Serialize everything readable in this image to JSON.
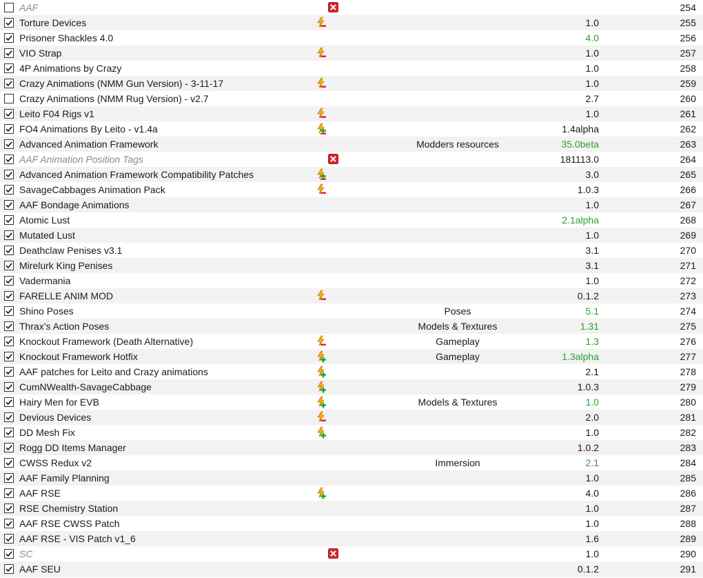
{
  "colors": {
    "row_alt": "#f2f2f2",
    "version_newer": "#2e9e2e",
    "separator_text": "#8a8a8a",
    "separator_icon": "#d9262b"
  },
  "mods": [
    {
      "name": "AAF",
      "checked": false,
      "separator": true,
      "flag": "separator-icon",
      "category": "",
      "version": "",
      "version_status": "",
      "priority": "254"
    },
    {
      "name": "Torture Devices",
      "checked": true,
      "separator": false,
      "flag": "conflict-overwritten-icon",
      "category": "",
      "version": "1.0",
      "version_status": "",
      "priority": "255"
    },
    {
      "name": "Prisoner Shackles 4.0",
      "checked": true,
      "separator": false,
      "flag": "",
      "category": "",
      "version": "4.0",
      "version_status": "newer",
      "priority": "256"
    },
    {
      "name": "VIO Strap",
      "checked": true,
      "separator": false,
      "flag": "conflict-overwritten-icon",
      "category": "",
      "version": "1.0",
      "version_status": "",
      "priority": "257"
    },
    {
      "name": "4P Animations by Crazy",
      "checked": true,
      "separator": false,
      "flag": "",
      "category": "",
      "version": "1.0",
      "version_status": "",
      "priority": "258"
    },
    {
      "name": "Crazy Animations (NMM Gun Version) - 3-11-17",
      "checked": true,
      "separator": false,
      "flag": "conflict-overwritten-icon",
      "category": "",
      "version": "1.0",
      "version_status": "",
      "priority": "259"
    },
    {
      "name": "Crazy Animations (NMM Rug Version) - v2.7",
      "checked": false,
      "separator": false,
      "flag": "",
      "category": "",
      "version": "2.7",
      "version_status": "",
      "priority": "260"
    },
    {
      "name": "Leito F04 Rigs v1",
      "checked": true,
      "separator": false,
      "flag": "conflict-overwritten-icon",
      "category": "",
      "version": "1.0",
      "version_status": "",
      "priority": "261"
    },
    {
      "name": "FO4 Animations By Leito - v1.4a",
      "checked": true,
      "separator": false,
      "flag": "conflict-mixed-icon",
      "category": "",
      "version": "1.4alpha",
      "version_status": "",
      "priority": "262"
    },
    {
      "name": "Advanced Animation Framework",
      "checked": true,
      "separator": false,
      "flag": "",
      "category": "Modders resources",
      "version": "35.0beta",
      "version_status": "newer",
      "priority": "263"
    },
    {
      "name": "AAF Animation Position Tags",
      "checked": true,
      "separator": true,
      "flag": "separator-icon",
      "category": "",
      "version": "181113.0",
      "version_status": "",
      "priority": "264"
    },
    {
      "name": "Advanced Animation Framework Compatibility Patches",
      "checked": true,
      "separator": false,
      "flag": "conflict-mixed-icon",
      "category": "",
      "version": "3.0",
      "version_status": "",
      "priority": "265"
    },
    {
      "name": "SavageCabbages Animation Pack",
      "checked": true,
      "separator": false,
      "flag": "conflict-overwritten-icon",
      "category": "",
      "version": "1.0.3",
      "version_status": "",
      "priority": "266"
    },
    {
      "name": "AAF Bondage Animations",
      "checked": true,
      "separator": false,
      "flag": "",
      "category": "",
      "version": "1.0",
      "version_status": "",
      "priority": "267"
    },
    {
      "name": "Atomic Lust",
      "checked": true,
      "separator": false,
      "flag": "",
      "category": "",
      "version": "2.1alpha",
      "version_status": "newer",
      "priority": "268"
    },
    {
      "name": "Mutated Lust",
      "checked": true,
      "separator": false,
      "flag": "",
      "category": "",
      "version": "1.0",
      "version_status": "",
      "priority": "269"
    },
    {
      "name": "Deathclaw Penises v3.1",
      "checked": true,
      "separator": false,
      "flag": "",
      "category": "",
      "version": "3.1",
      "version_status": "",
      "priority": "270"
    },
    {
      "name": "Mirelurk King Penises",
      "checked": true,
      "separator": false,
      "flag": "",
      "category": "",
      "version": "3.1",
      "version_status": "",
      "priority": "271"
    },
    {
      "name": "Vadermania",
      "checked": true,
      "separator": false,
      "flag": "",
      "category": "",
      "version": "1.0",
      "version_status": "",
      "priority": "272"
    },
    {
      "name": "FARELLE ANIM MOD",
      "checked": true,
      "separator": false,
      "flag": "conflict-overwritten-icon",
      "category": "",
      "version": "0.1.2",
      "version_status": "",
      "priority": "273"
    },
    {
      "name": "Shino Poses",
      "checked": true,
      "separator": false,
      "flag": "",
      "category": "Poses",
      "version": "5.1",
      "version_status": "newer",
      "priority": "274"
    },
    {
      "name": "Thrax's Action Poses",
      "checked": true,
      "separator": false,
      "flag": "",
      "category": "Models & Textures",
      "version": "1.31",
      "version_status": "newer",
      "priority": "275"
    },
    {
      "name": "Knockout Framework (Death Alternative)",
      "checked": true,
      "separator": false,
      "flag": "conflict-overwritten-icon",
      "category": "Gameplay",
      "version": "1.3",
      "version_status": "newer",
      "priority": "276"
    },
    {
      "name": "Knockout Framework Hotfix",
      "checked": true,
      "separator": false,
      "flag": "conflict-overwrite-icon",
      "category": "Gameplay",
      "version": "1.3alpha",
      "version_status": "newer",
      "priority": "277"
    },
    {
      "name": "AAF patches for Leito and Crazy animations",
      "checked": true,
      "separator": false,
      "flag": "conflict-overwrite-icon",
      "category": "",
      "version": "2.1",
      "version_status": "",
      "priority": "278"
    },
    {
      "name": "CumNWealth-SavageCabbage",
      "checked": true,
      "separator": false,
      "flag": "conflict-overwrite-icon",
      "category": "",
      "version": "1.0.3",
      "version_status": "",
      "priority": "279"
    },
    {
      "name": "Hairy Men for EVB",
      "checked": true,
      "separator": false,
      "flag": "conflict-overwrite-icon",
      "category": "Models & Textures",
      "version": "1.0",
      "version_status": "newer",
      "priority": "280"
    },
    {
      "name": "Devious Devices",
      "checked": true,
      "separator": false,
      "flag": "conflict-overwritten-icon",
      "category": "",
      "version": "2.0",
      "version_status": "",
      "priority": "281"
    },
    {
      "name": "DD Mesh Fix",
      "checked": true,
      "separator": false,
      "flag": "conflict-overwrite-icon",
      "category": "",
      "version": "1.0",
      "version_status": "",
      "priority": "282"
    },
    {
      "name": "Rogg DD Items Manager",
      "checked": true,
      "separator": false,
      "flag": "",
      "category": "",
      "version": "1.0.2",
      "version_status": "",
      "priority": "283"
    },
    {
      "name": "CWSS Redux v2",
      "checked": true,
      "separator": false,
      "flag": "",
      "category": "Immersion",
      "version": "2.1",
      "version_status": "newer",
      "priority": "284"
    },
    {
      "name": "AAF Family Planning",
      "checked": true,
      "separator": false,
      "flag": "",
      "category": "",
      "version": "1.0",
      "version_status": "",
      "priority": "285"
    },
    {
      "name": "AAF RSE",
      "checked": true,
      "separator": false,
      "flag": "conflict-overwrite-icon",
      "category": "",
      "version": "4.0",
      "version_status": "",
      "priority": "286"
    },
    {
      "name": "RSE Chemistry Station",
      "checked": true,
      "separator": false,
      "flag": "",
      "category": "",
      "version": "1.0",
      "version_status": "",
      "priority": "287"
    },
    {
      "name": "AAF RSE CWSS Patch",
      "checked": true,
      "separator": false,
      "flag": "",
      "category": "",
      "version": "1.0",
      "version_status": "",
      "priority": "288"
    },
    {
      "name": "AAF RSE - VIS Patch v1_6",
      "checked": true,
      "separator": false,
      "flag": "",
      "category": "",
      "version": "1.6",
      "version_status": "",
      "priority": "289"
    },
    {
      "name": "SC",
      "checked": true,
      "separator": true,
      "flag": "separator-icon",
      "category": "",
      "version": "1.0",
      "version_status": "",
      "priority": "290"
    },
    {
      "name": "AAF SEU",
      "checked": true,
      "separator": false,
      "flag": "",
      "category": "",
      "version": "0.1.2",
      "version_status": "",
      "priority": "291"
    }
  ]
}
